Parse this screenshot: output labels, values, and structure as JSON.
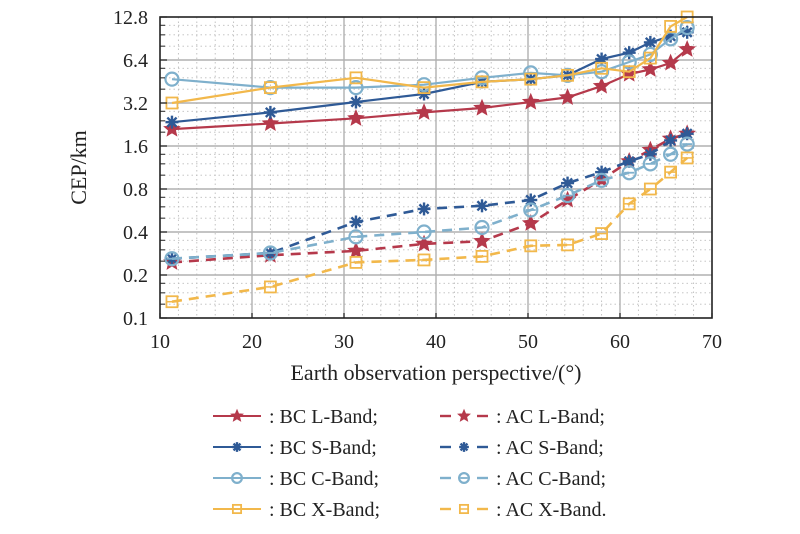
{
  "chart_data": {
    "type": "line",
    "title": "",
    "xlabel": "Earth observation perspective/(°)",
    "ylabel": "CEP/km",
    "xscale": "linear",
    "yscale": "log2",
    "xlim": [
      10,
      70
    ],
    "ylim": [
      0.1,
      12.8
    ],
    "xticks": [
      10,
      20,
      30,
      40,
      50,
      60,
      70
    ],
    "xtick_labels": [
      "10",
      "20",
      "30",
      "40",
      "50",
      "60",
      "70"
    ],
    "yticks": [
      0.1,
      0.2,
      0.4,
      0.8,
      1.6,
      3.2,
      6.4,
      12.8
    ],
    "ytick_labels": [
      "0.1",
      "0.2",
      "0.4",
      "0.8",
      "1.6",
      "3.2",
      "6.4",
      "12.8"
    ],
    "grid": true,
    "legend_position": "below",
    "series": [
      {
        "name": "BC L-Band",
        "legend_label": ": BC L-Band;",
        "color": "#b5394b",
        "style": "solid",
        "marker": "star",
        "x": [
          11.3,
          22,
          31.3,
          38.7,
          45,
          50.3,
          54.3,
          58,
          61,
          63.3,
          65.5,
          67.3
        ],
        "y": [
          2.1,
          2.3,
          2.5,
          2.75,
          2.95,
          3.25,
          3.5,
          4.2,
          5.1,
          5.5,
          6.1,
          7.6
        ]
      },
      {
        "name": "BC S-Band",
        "legend_label": ": BC S-Band;",
        "color": "#2f5a96",
        "style": "solid",
        "marker": "asterisk",
        "x": [
          11.3,
          22,
          31.3,
          38.7,
          45,
          50.3,
          54.3,
          58,
          61,
          63.3,
          65.5,
          67.3
        ],
        "y": [
          2.35,
          2.75,
          3.25,
          3.7,
          4.5,
          4.7,
          5.0,
          6.5,
          7.2,
          8.5,
          9.4,
          10.0
        ]
      },
      {
        "name": "BC C-Band",
        "legend_label": ": BC C-Band;",
        "color": "#7fb0cc",
        "style": "solid",
        "marker": "circle",
        "x": [
          11.3,
          22,
          31.3,
          38.7,
          45,
          50.3,
          54.3,
          58,
          61,
          63.3,
          65.5,
          67.3
        ],
        "y": [
          4.7,
          4.1,
          4.1,
          4.3,
          4.8,
          5.2,
          5.0,
          5.3,
          6.2,
          7.0,
          9.0,
          10.8
        ]
      },
      {
        "name": "BC X-Band",
        "legend_label": ": BC X-Band;",
        "color": "#f2b84b",
        "style": "solid",
        "marker": "square",
        "x": [
          11.3,
          22,
          31.3,
          38.7,
          45,
          50.3,
          54.3,
          58,
          61,
          63.3,
          65.5,
          67.3
        ],
        "y": [
          3.2,
          4.1,
          4.8,
          4.1,
          4.5,
          4.7,
          5.0,
          5.6,
          5.3,
          6.6,
          11.0,
          12.8
        ]
      },
      {
        "name": "AC L-Band",
        "legend_label": ": AC L-Band;",
        "color": "#b5394b",
        "style": "dashed",
        "marker": "star",
        "x": [
          11.3,
          22,
          31.3,
          38.7,
          45,
          50.3,
          54.3,
          58,
          61,
          63.3,
          65.5,
          67.3
        ],
        "y": [
          0.245,
          0.275,
          0.295,
          0.33,
          0.345,
          0.46,
          0.67,
          0.93,
          1.25,
          1.5,
          1.8,
          1.95
        ]
      },
      {
        "name": "AC S-Band",
        "legend_label": ": AC S-Band;",
        "color": "#2f5a96",
        "style": "dashed",
        "marker": "asterisk",
        "x": [
          11.3,
          22,
          31.3,
          38.7,
          45,
          50.3,
          54.3,
          58,
          61,
          63.3,
          65.5,
          67.3
        ],
        "y": [
          0.26,
          0.285,
          0.47,
          0.58,
          0.61,
          0.67,
          0.88,
          1.05,
          1.25,
          1.4,
          1.75,
          1.95
        ]
      },
      {
        "name": "AC C-Band",
        "legend_label": ": AC C-Band;",
        "color": "#7fb0cc",
        "style": "dashed",
        "marker": "circle-bar",
        "x": [
          11.3,
          22,
          31.3,
          38.7,
          45,
          50.3,
          54.3,
          58,
          61,
          63.3,
          65.5,
          67.3
        ],
        "y": [
          0.26,
          0.285,
          0.37,
          0.4,
          0.43,
          0.57,
          0.72,
          0.92,
          1.04,
          1.2,
          1.4,
          1.65
        ]
      },
      {
        "name": "AC X-Band",
        "legend_label": ": AC X-Band.",
        "color": "#f2b84b",
        "style": "dashed",
        "marker": "square-bar",
        "x": [
          11.3,
          22,
          31.3,
          38.7,
          45,
          50.3,
          54.3,
          58,
          61,
          63.3,
          65.5,
          67.3
        ],
        "y": [
          0.13,
          0.165,
          0.245,
          0.255,
          0.27,
          0.32,
          0.325,
          0.39,
          0.63,
          0.8,
          1.05,
          1.32
        ]
      }
    ]
  }
}
